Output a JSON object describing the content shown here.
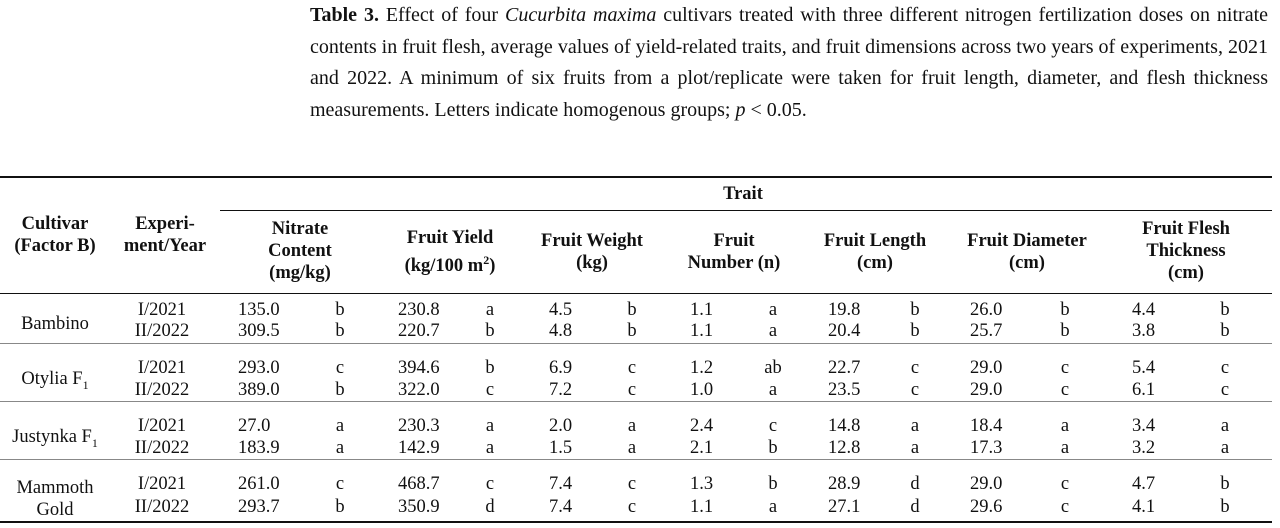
{
  "caption": {
    "label": "Table 3.",
    "runs": [
      " Effect of four ",
      "Cucurbita maxima",
      " cultivars treated with three different nitrogen fertilization doses on nitrate contents in fruit flesh, average values of yield-related traits, and fruit dimensions across two years of experiments, 2021 and 2022. A minimum of six fruits from a plot/replicate were taken for fruit length, diameter, and flesh thickness measurements. Letters indicate homogenous groups; ",
      "p",
      " < 0.05."
    ]
  },
  "table": {
    "header": {
      "cultivar": [
        "Cultivar",
        "(Factor B)"
      ],
      "experiment": [
        "Experi-",
        "ment/Year"
      ],
      "trait": "Trait",
      "traits": [
        {
          "lines": [
            "Nitrate",
            "Content",
            "(mg/kg)"
          ]
        },
        {
          "lines": [
            "Fruit Yield"
          ],
          "unit": "(kg/100 m",
          "sup": "2",
          "unit_end": ")"
        },
        {
          "lines": [
            "Fruit Weight",
            "(kg)"
          ]
        },
        {
          "lines": [
            "Fruit",
            "Number (n)"
          ]
        },
        {
          "lines": [
            "Fruit Length",
            "(cm)"
          ]
        },
        {
          "lines": [
            "Fruit Diameter",
            "(cm)"
          ]
        },
        {
          "lines": [
            "Fruit Flesh",
            "Thickness",
            "(cm)"
          ]
        }
      ]
    },
    "groups": [
      {
        "name": "Bambino",
        "sub": "",
        "rows": [
          [
            "I/2021",
            "135.0",
            "b",
            "230.8",
            "a",
            "4.5",
            "b",
            "1.1",
            "a",
            "19.8",
            "b",
            "26.0",
            "b",
            "4.4",
            "b"
          ],
          [
            "II/2022",
            "309.5",
            "b",
            "220.7",
            "b",
            "4.8",
            "b",
            "1.1",
            "a",
            "20.4",
            "b",
            "25.7",
            "b",
            "3.8",
            "b"
          ]
        ]
      },
      {
        "name": "Otylia F",
        "sub": "1",
        "rows": [
          [
            "I/2021",
            "293.0",
            "c",
            "394.6",
            "b",
            "6.9",
            "c",
            "1.2",
            "ab",
            "22.7",
            "c",
            "29.0",
            "c",
            "5.4",
            "c"
          ],
          [
            "II/2022",
            "389.0",
            "b",
            "322.0",
            "c",
            "7.2",
            "c",
            "1.0",
            "a",
            "23.5",
            "c",
            "29.0",
            "c",
            "6.1",
            "c"
          ]
        ]
      },
      {
        "name": "Justynka F",
        "sub": "1",
        "rows": [
          [
            "I/2021",
            "27.0",
            "a",
            "230.3",
            "a",
            "2.0",
            "a",
            "2.4",
            "c",
            "14.8",
            "a",
            "18.4",
            "a",
            "3.4",
            "a"
          ],
          [
            "II/2022",
            "183.9",
            "a",
            "142.9",
            "a",
            "1.5",
            "a",
            "2.1",
            "b",
            "12.8",
            "a",
            "17.3",
            "a",
            "3.2",
            "a"
          ]
        ]
      },
      {
        "name": "Mammoth Gold",
        "sub": "",
        "rows": [
          [
            "I/2021",
            "261.0",
            "c",
            "468.7",
            "c",
            "7.4",
            "c",
            "1.3",
            "b",
            "28.9",
            "d",
            "29.0",
            "c",
            "4.7",
            "b"
          ],
          [
            "II/2022",
            "293.7",
            "b",
            "350.9",
            "d",
            "7.4",
            "c",
            "1.1",
            "a",
            "27.1",
            "d",
            "29.6",
            "c",
            "4.1",
            "b"
          ]
        ]
      }
    ]
  }
}
